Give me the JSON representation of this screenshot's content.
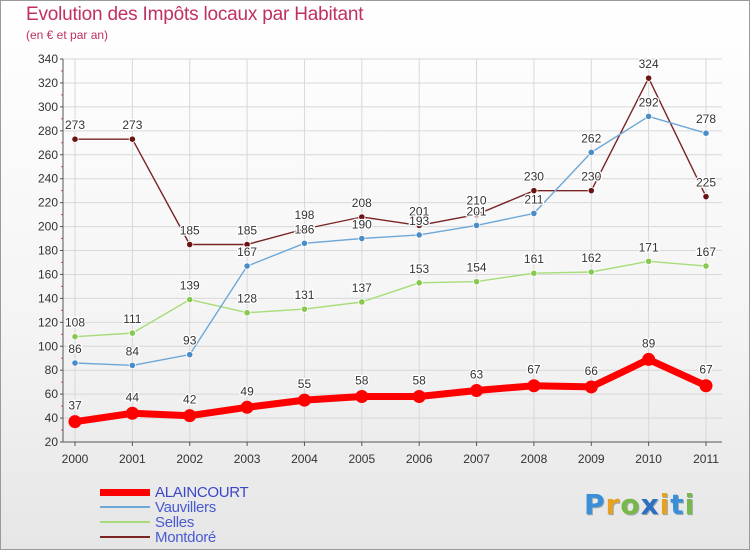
{
  "title": "Evolution des Impôts locaux par Habitant",
  "subtitle": "(en € et par an)",
  "logo": {
    "letters": [
      "P",
      "r",
      "o",
      "x",
      "i",
      "t",
      "i"
    ],
    "colors": [
      "#3a8fd8",
      "#e8a020",
      "#78b84a",
      "#2e6fc0",
      "#e8a020",
      "#3a8fd8",
      "#78b84a"
    ]
  },
  "chart_data": {
    "type": "line",
    "x": [
      "2000",
      "2001",
      "2002",
      "2003",
      "2004",
      "2005",
      "2006",
      "2007",
      "2008",
      "2009",
      "2010",
      "2011"
    ],
    "ylim": [
      20,
      340
    ],
    "yticks": [
      20,
      40,
      60,
      80,
      100,
      120,
      140,
      160,
      180,
      200,
      220,
      240,
      260,
      280,
      300,
      320,
      340
    ],
    "grid": true,
    "legend_position": "bottom-left",
    "series": [
      {
        "name": "Montdoré",
        "color": "#7a2424",
        "marker": "#6b1414",
        "values": [
          273,
          273,
          185,
          185,
          198,
          208,
          201,
          210,
          230,
          230,
          324,
          225
        ]
      },
      {
        "name": "Selles",
        "color": "#a8dc78",
        "marker": "#88c850",
        "values": [
          108,
          111,
          139,
          128,
          131,
          137,
          153,
          154,
          161,
          162,
          171,
          167
        ]
      },
      {
        "name": "Vauvillers",
        "color": "#6ea8d8",
        "marker": "#4a8cc8",
        "values": [
          86,
          84,
          93,
          167,
          186,
          190,
          193,
          201,
          211,
          262,
          292,
          278
        ]
      },
      {
        "name": "ALAINCOURT",
        "color": "#ff0000",
        "marker": "#ff0000",
        "values": [
          37,
          44,
          42,
          49,
          55,
          58,
          58,
          63,
          67,
          66,
          89,
          67
        ]
      }
    ]
  }
}
